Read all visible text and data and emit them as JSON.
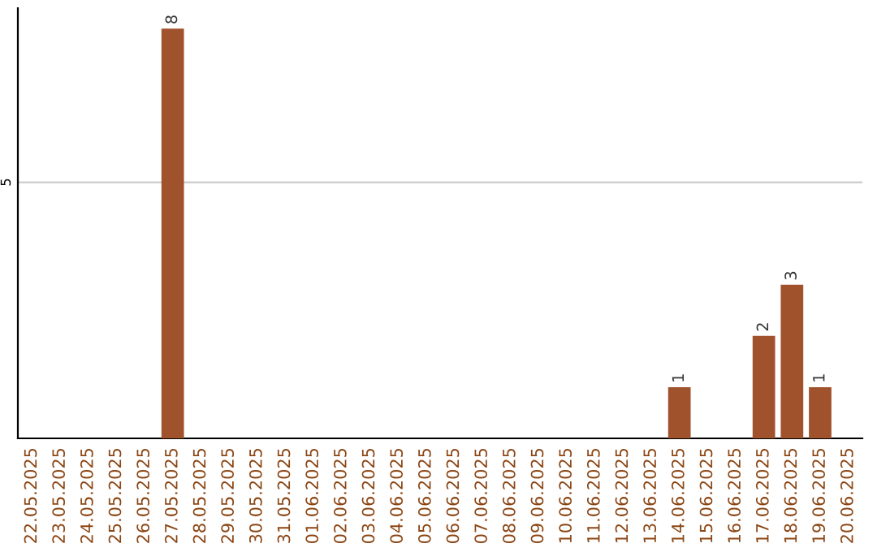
{
  "chart_data": {
    "type": "bar",
    "categories": [
      "22.05.2025",
      "23.05.2025",
      "24.05.2025",
      "25.05.2025",
      "26.05.2025",
      "27.05.2025",
      "28.05.2025",
      "29.05.2025",
      "30.05.2025",
      "31.05.2025",
      "01.06.2025",
      "02.06.2025",
      "03.06.2025",
      "04.06.2025",
      "05.06.2025",
      "06.06.2025",
      "07.06.2025",
      "08.06.2025",
      "09.06.2025",
      "10.06.2025",
      "11.06.2025",
      "12.06.2025",
      "13.06.2025",
      "14.06.2025",
      "15.06.2025",
      "16.06.2025",
      "17.06.2025",
      "18.06.2025",
      "19.06.2025",
      "20.06.2025"
    ],
    "values": [
      0,
      0,
      0,
      0,
      0,
      8,
      0,
      0,
      0,
      0,
      0,
      0,
      0,
      0,
      0,
      0,
      0,
      0,
      0,
      0,
      0,
      0,
      0,
      1,
      0,
      0,
      2,
      3,
      1,
      0
    ],
    "value_labels": [
      null,
      null,
      null,
      null,
      null,
      "8",
      null,
      null,
      null,
      null,
      null,
      null,
      null,
      null,
      null,
      null,
      null,
      null,
      null,
      null,
      null,
      null,
      null,
      "1",
      null,
      null,
      "2",
      "3",
      "1",
      null
    ],
    "color": "#a0522d",
    "ylim": [
      0,
      8.4
    ],
    "yticks": [
      5
    ],
    "grid": "y"
  }
}
